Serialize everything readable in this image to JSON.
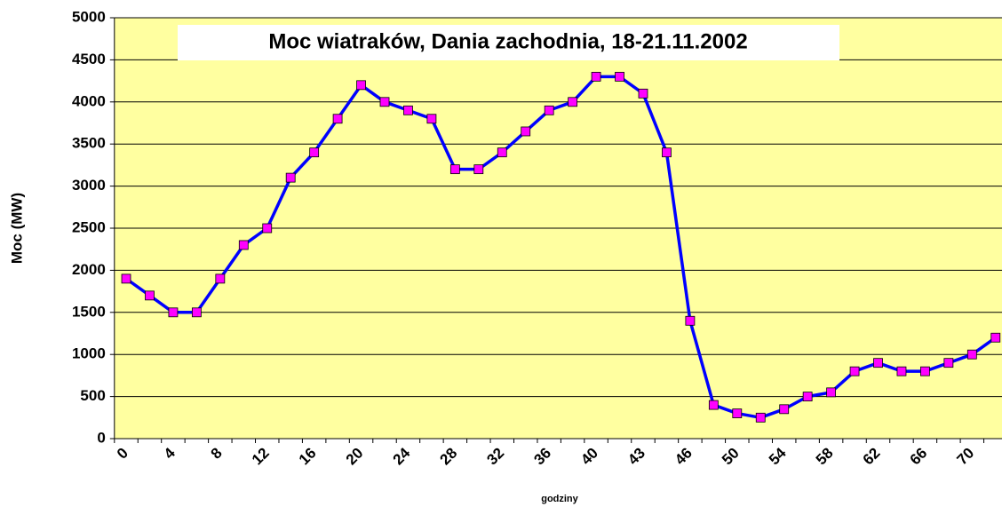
{
  "chart_data": {
    "type": "line",
    "title": "Moc wiatraków, Dania zachodnia, 18-21.11.2002",
    "x_label": "godziny",
    "y_label": "Moc (MW)",
    "categories": [
      "0",
      null,
      "4",
      null,
      "8",
      null,
      "12",
      null,
      "16",
      null,
      "20",
      null,
      "24",
      null,
      "28",
      null,
      "32",
      null,
      "36",
      null,
      "40",
      null,
      "43",
      null,
      "46",
      null,
      "50",
      null,
      "54",
      null,
      "58",
      null,
      "62",
      null,
      "66",
      null,
      "70",
      null
    ],
    "series": [
      {
        "name": "Moc",
        "color": "#0000ff",
        "marker_color": "#ff00ff",
        "values": [
          1900,
          1700,
          1500,
          1500,
          1900,
          2300,
          2500,
          3100,
          3400,
          3800,
          4200,
          4000,
          3900,
          3800,
          3200,
          3200,
          3400,
          3650,
          3900,
          4000,
          4300,
          4300,
          4100,
          3400,
          1400,
          400,
          300,
          250,
          350,
          500,
          550,
          800,
          900,
          800,
          800,
          900,
          1000,
          1200
        ]
      }
    ],
    "ylim": [
      0,
      5000
    ],
    "yticks": [
      0,
      500,
      1000,
      1500,
      2000,
      2500,
      3000,
      3500,
      4000,
      4500,
      5000
    ],
    "grid": true,
    "plot_color": "#ffffa0"
  }
}
